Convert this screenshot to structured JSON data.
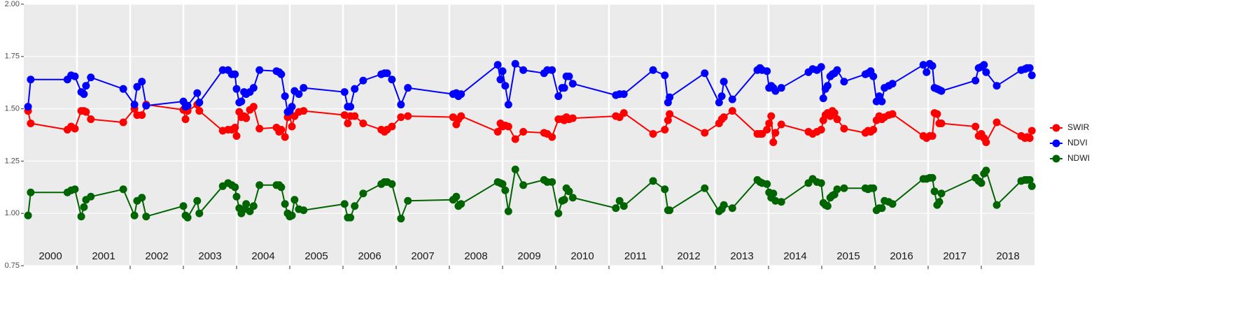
{
  "chart_data": {
    "type": "line",
    "x": [
      2000.08,
      2000.13,
      2000.82,
      2000.89,
      2000.96,
      2001.08,
      2001.13,
      2001.17,
      2001.26,
      2001.87,
      2002.08,
      2002.13,
      2002.22,
      2002.3,
      2003.0,
      2003.04,
      2003.08,
      2003.26,
      2003.3,
      2003.74,
      2003.84,
      2003.91,
      2003.97,
      2004.0,
      2004.05,
      2004.09,
      2004.14,
      2004.18,
      2004.25,
      2004.32,
      2004.43,
      2004.75,
      2004.8,
      2004.84,
      2004.91,
      2004.96,
      2005.0,
      2005.04,
      2005.09,
      2005.17,
      2005.26,
      2006.03,
      2006.09,
      2006.14,
      2006.22,
      2006.38,
      2006.72,
      2006.78,
      2006.83,
      2006.92,
      2007.09,
      2007.22,
      2008.07,
      2008.13,
      2008.17,
      2008.22,
      2008.91,
      2008.96,
      2009.0,
      2009.05,
      2009.11,
      2009.24,
      2009.39,
      2009.78,
      2009.84,
      2009.93,
      2010.05,
      2010.12,
      2010.16,
      2010.2,
      2010.25,
      2010.32,
      2011.13,
      2011.2,
      2011.28,
      2011.83,
      2012.05,
      2012.11,
      2012.14,
      2012.8,
      2013.07,
      2013.12,
      2013.16,
      2013.32,
      2013.79,
      2013.84,
      2013.88,
      2013.97,
      2014.01,
      2014.05,
      2014.09,
      2014.13,
      2014.24,
      2014.75,
      2014.83,
      2014.91,
      2014.99,
      2015.03,
      2015.07,
      2015.11,
      2015.16,
      2015.2,
      2015.24,
      2015.29,
      2015.42,
      2015.82,
      2015.87,
      2015.92,
      2015.97,
      2016.03,
      2016.08,
      2016.13,
      2016.18,
      2016.26,
      2016.33,
      2016.91,
      2016.97,
      2017.03,
      2017.08,
      2017.12,
      2017.17,
      2017.21,
      2017.25,
      2017.89,
      2017.95,
      2018.0,
      2018.05,
      2018.09,
      2018.29,
      2018.75,
      2018.82,
      2018.86,
      2018.91,
      2018.95
    ],
    "series": [
      {
        "name": "SWIR",
        "color": "#ff0000",
        "values": [
          1.49,
          1.43,
          1.4,
          1.415,
          1.405,
          1.49,
          1.49,
          1.485,
          1.45,
          1.435,
          1.5,
          1.47,
          1.47,
          1.52,
          1.495,
          1.45,
          1.49,
          1.52,
          1.49,
          1.395,
          1.4,
          1.4,
          1.41,
          1.37,
          1.485,
          1.46,
          1.465,
          1.455,
          1.495,
          1.51,
          1.405,
          1.41,
          1.39,
          1.4,
          1.365,
          1.46,
          1.47,
          1.415,
          1.465,
          1.485,
          1.49,
          1.47,
          1.43,
          1.465,
          1.465,
          1.43,
          1.4,
          1.39,
          1.4,
          1.415,
          1.46,
          1.465,
          1.46,
          1.425,
          1.45,
          1.465,
          1.39,
          1.43,
          1.415,
          1.42,
          1.415,
          1.355,
          1.39,
          1.385,
          1.38,
          1.365,
          1.45,
          1.45,
          1.445,
          1.46,
          1.45,
          1.455,
          1.465,
          1.46,
          1.48,
          1.38,
          1.4,
          1.445,
          1.475,
          1.385,
          1.43,
          1.45,
          1.46,
          1.49,
          1.38,
          1.38,
          1.38,
          1.4,
          1.43,
          1.465,
          1.34,
          1.385,
          1.425,
          1.39,
          1.38,
          1.39,
          1.4,
          1.445,
          1.47,
          1.48,
          1.465,
          1.49,
          1.48,
          1.45,
          1.405,
          1.385,
          1.395,
          1.39,
          1.4,
          1.445,
          1.465,
          1.45,
          1.46,
          1.47,
          1.475,
          1.37,
          1.36,
          1.37,
          1.37,
          1.48,
          1.475,
          1.43,
          1.43,
          1.415,
          1.37,
          1.38,
          1.36,
          1.34,
          1.435,
          1.37,
          1.36,
          1.365,
          1.36,
          1.395
        ]
      },
      {
        "name": "NDVI",
        "color": "#0000ff",
        "values": [
          1.51,
          1.64,
          1.64,
          1.66,
          1.655,
          1.58,
          1.57,
          1.61,
          1.65,
          1.595,
          1.52,
          1.605,
          1.63,
          1.515,
          1.535,
          1.51,
          1.515,
          1.575,
          1.53,
          1.685,
          1.685,
          1.665,
          1.665,
          1.595,
          1.53,
          1.535,
          1.58,
          1.57,
          1.58,
          1.6,
          1.685,
          1.68,
          1.675,
          1.665,
          1.56,
          1.485,
          1.49,
          1.51,
          1.585,
          1.57,
          1.6,
          1.58,
          1.51,
          1.51,
          1.595,
          1.635,
          1.665,
          1.67,
          1.67,
          1.64,
          1.52,
          1.6,
          1.57,
          1.575,
          1.56,
          1.57,
          1.71,
          1.64,
          1.68,
          1.61,
          1.52,
          1.715,
          1.685,
          1.67,
          1.685,
          1.685,
          1.56,
          1.6,
          1.6,
          1.655,
          1.655,
          1.62,
          1.565,
          1.57,
          1.57,
          1.685,
          1.66,
          1.53,
          1.555,
          1.67,
          1.53,
          1.56,
          1.63,
          1.545,
          1.685,
          1.695,
          1.685,
          1.68,
          1.6,
          1.61,
          1.6,
          1.585,
          1.6,
          1.675,
          1.69,
          1.685,
          1.7,
          1.55,
          1.595,
          1.61,
          1.655,
          1.665,
          1.67,
          1.685,
          1.63,
          1.665,
          1.67,
          1.68,
          1.655,
          1.535,
          1.56,
          1.535,
          1.6,
          1.61,
          1.62,
          1.71,
          1.675,
          1.715,
          1.705,
          1.6,
          1.595,
          1.59,
          1.585,
          1.635,
          1.695,
          1.7,
          1.71,
          1.675,
          1.61,
          1.685,
          1.69,
          1.695,
          1.695,
          1.66
        ]
      },
      {
        "name": "NDWI",
        "color": "#006400",
        "values": [
          0.99,
          1.1,
          1.1,
          1.11,
          1.115,
          0.985,
          1.03,
          1.065,
          1.08,
          1.115,
          0.99,
          1.06,
          1.075,
          0.985,
          1.035,
          0.99,
          0.98,
          1.06,
          1.0,
          1.13,
          1.145,
          1.135,
          1.125,
          1.08,
          1.025,
          1.0,
          1.02,
          1.045,
          1.01,
          1.035,
          1.135,
          1.135,
          1.135,
          1.125,
          1.045,
          1.0,
          0.985,
          0.99,
          1.065,
          1.02,
          1.015,
          1.045,
          0.98,
          0.98,
          1.035,
          1.095,
          1.14,
          1.15,
          1.15,
          1.14,
          0.975,
          1.06,
          1.065,
          1.08,
          1.035,
          1.045,
          1.15,
          1.145,
          1.14,
          1.11,
          1.01,
          1.21,
          1.135,
          1.16,
          1.15,
          1.15,
          1.0,
          1.06,
          1.065,
          1.12,
          1.105,
          1.075,
          1.025,
          1.06,
          1.035,
          1.155,
          1.115,
          1.015,
          1.015,
          1.12,
          1.01,
          1.02,
          1.04,
          1.025,
          1.16,
          1.15,
          1.145,
          1.14,
          1.1,
          1.075,
          1.095,
          1.06,
          1.055,
          1.145,
          1.165,
          1.15,
          1.145,
          1.05,
          1.04,
          1.035,
          1.075,
          1.085,
          1.09,
          1.115,
          1.12,
          1.12,
          1.115,
          1.12,
          1.12,
          1.015,
          1.025,
          1.025,
          1.06,
          1.055,
          1.045,
          1.165,
          1.165,
          1.17,
          1.17,
          1.105,
          1.04,
          1.055,
          1.095,
          1.17,
          1.155,
          1.145,
          1.19,
          1.205,
          1.04,
          1.155,
          1.16,
          1.16,
          1.16,
          1.13
        ]
      }
    ],
    "xlim": [
      2000,
      2019
    ],
    "xticks": [
      2001,
      2002,
      2003,
      2004,
      2005,
      2006,
      2007,
      2008,
      2009,
      2010,
      2011,
      2012,
      2013,
      2014,
      2015,
      2016,
      2017,
      2018
    ],
    "year_labels": [
      {
        "value": 2000.5,
        "label": "2000"
      },
      {
        "value": 2001.5,
        "label": "2001"
      },
      {
        "value": 2002.5,
        "label": "2002"
      },
      {
        "value": 2003.5,
        "label": "2003"
      },
      {
        "value": 2004.5,
        "label": "2004"
      },
      {
        "value": 2005.5,
        "label": "2005"
      },
      {
        "value": 2006.5,
        "label": "2006"
      },
      {
        "value": 2007.5,
        "label": "2007"
      },
      {
        "value": 2008.5,
        "label": "2008"
      },
      {
        "value": 2009.5,
        "label": "2009"
      },
      {
        "value": 2010.5,
        "label": "2010"
      },
      {
        "value": 2011.5,
        "label": "2011"
      },
      {
        "value": 2012.5,
        "label": "2012"
      },
      {
        "value": 2013.5,
        "label": "2013"
      },
      {
        "value": 2014.5,
        "label": "2014"
      },
      {
        "value": 2015.5,
        "label": "2015"
      },
      {
        "value": 2016.5,
        "label": "2016"
      },
      {
        "value": 2017.5,
        "label": "2017"
      },
      {
        "value": 2018.5,
        "label": "2018"
      }
    ],
    "ylim": [
      0.75,
      2.0
    ],
    "yticks": [
      {
        "value": 0.75,
        "label": "0.75"
      },
      {
        "value": 1.0,
        "label": "1.00"
      },
      {
        "value": 1.25,
        "label": "1.25"
      },
      {
        "value": 1.5,
        "label": "1.50"
      },
      {
        "value": 1.75,
        "label": "1.75"
      },
      {
        "value": 2.0,
        "label": "2.00"
      }
    ],
    "grid": true,
    "legend": "right"
  }
}
